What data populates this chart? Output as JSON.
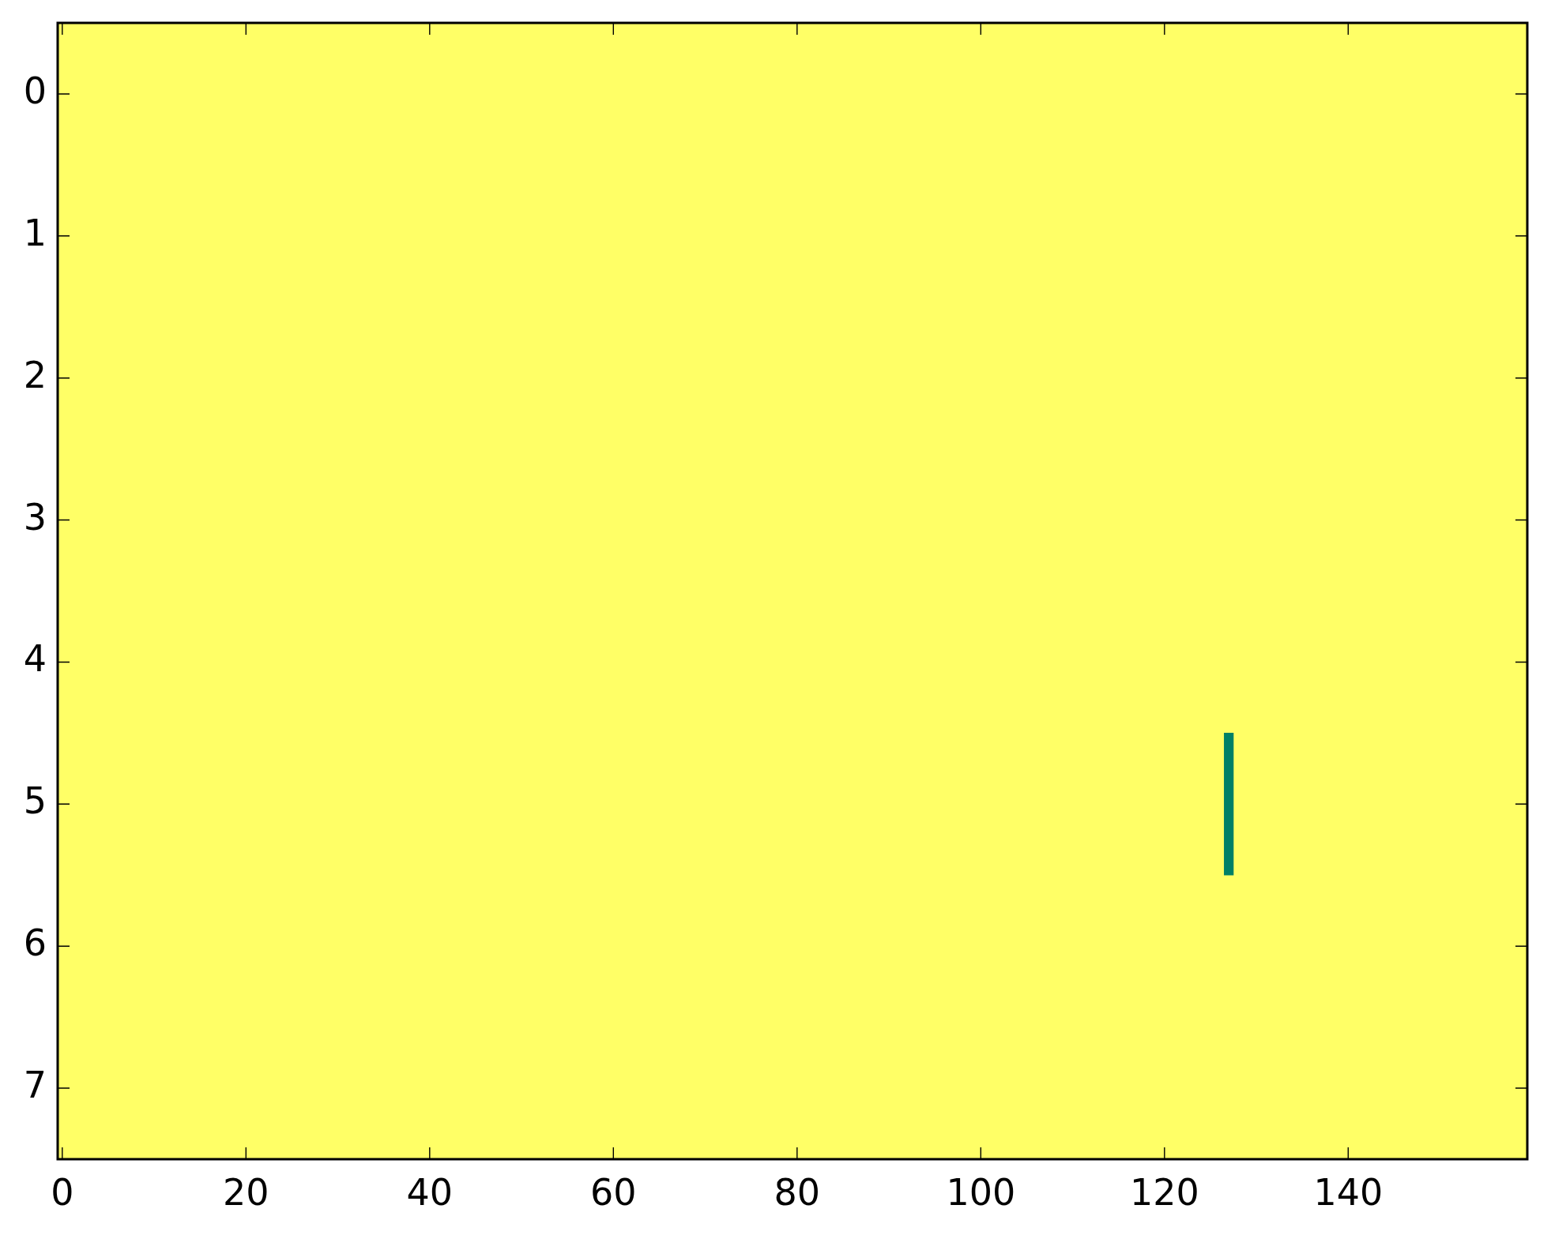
{
  "chart_data": {
    "type": "bar",
    "x": [
      127
    ],
    "base": [
      4.5
    ],
    "values": [
      1
    ],
    "color": "#008066",
    "bands": [
      {
        "axis": "x",
        "from": -0.5,
        "to": 159.5,
        "color": "#ffff66"
      }
    ],
    "xlim": [
      -0.5,
      159.5
    ],
    "xticks": [
      0,
      20,
      40,
      60,
      80,
      100,
      120,
      140
    ],
    "ylim": [
      7.5,
      -0.5
    ],
    "yticks": [
      0,
      1,
      2,
      3,
      4,
      5,
      6,
      7
    ]
  }
}
